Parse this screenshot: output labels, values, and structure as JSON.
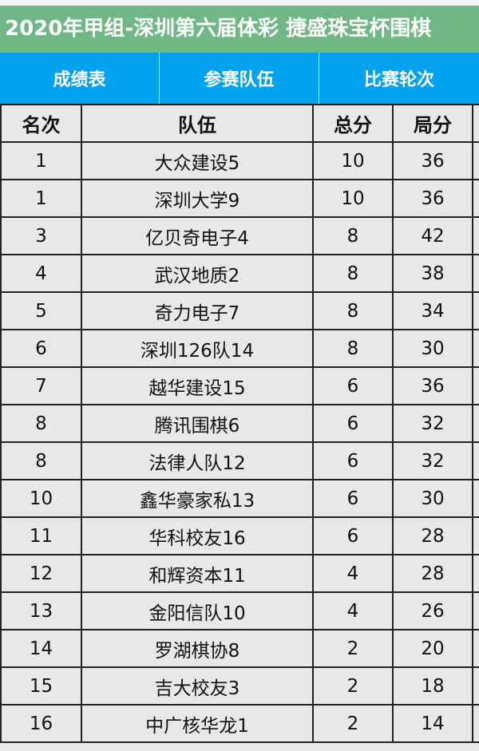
{
  "title": "2020年甲组-深圳第六届体彩 捷盛珠宝杯围棋",
  "tabs": [
    {
      "label": "成绩表"
    },
    {
      "label": "参赛队伍"
    },
    {
      "label": "比赛轮次"
    }
  ],
  "colors": {
    "banner": "#6fb886",
    "tabs": "#02a2ee"
  },
  "table": {
    "headers": [
      "名次",
      "队伍",
      "总分",
      "局分"
    ],
    "rows": [
      [
        "1",
        "大众建设5",
        "10",
        "36"
      ],
      [
        "1",
        "深圳大学9",
        "10",
        "36"
      ],
      [
        "3",
        "亿贝奇电子4",
        "8",
        "42"
      ],
      [
        "4",
        "武汉地质2",
        "8",
        "38"
      ],
      [
        "5",
        "奇力电子7",
        "8",
        "34"
      ],
      [
        "6",
        "深圳126队14",
        "8",
        "30"
      ],
      [
        "7",
        "越华建设15",
        "6",
        "36"
      ],
      [
        "8",
        "腾讯围棋6",
        "6",
        "32"
      ],
      [
        "8",
        "法律人队12",
        "6",
        "32"
      ],
      [
        "10",
        "鑫华豪家私13",
        "6",
        "30"
      ],
      [
        "11",
        "华科校友16",
        "6",
        "28"
      ],
      [
        "12",
        "和辉资本11",
        "4",
        "28"
      ],
      [
        "13",
        "金阳信队10",
        "4",
        "26"
      ],
      [
        "14",
        "罗湖棋协8",
        "2",
        "20"
      ],
      [
        "15",
        "吉大校友3",
        "2",
        "18"
      ],
      [
        "16",
        "中广核华龙1",
        "2",
        "14"
      ]
    ]
  }
}
